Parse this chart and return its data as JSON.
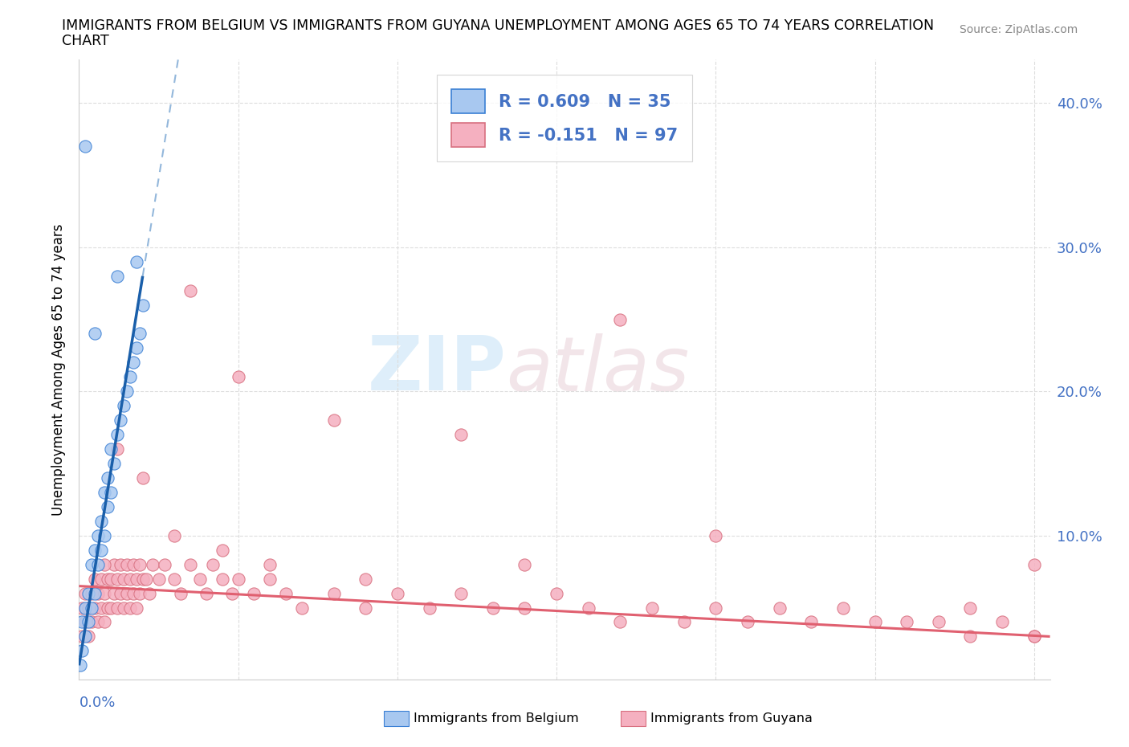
{
  "title_line1": "IMMIGRANTS FROM BELGIUM VS IMMIGRANTS FROM GUYANA UNEMPLOYMENT AMONG AGES 65 TO 74 YEARS CORRELATION",
  "title_line2": "CHART",
  "source": "Source: ZipAtlas.com",
  "ylabel_label": "Unemployment Among Ages 65 to 74 years",
  "legend_r1": "R = 0.609   N = 35",
  "legend_r2": "R = -0.151   N = 97",
  "color_belgium_fill": "#a8c8f0",
  "color_belgium_edge": "#3a7fd4",
  "color_belgium_line": "#1a5faa",
  "color_guyana_fill": "#f5b0c0",
  "color_guyana_edge": "#d87080",
  "color_guyana_line": "#e06070",
  "watermark_zip": "ZIP",
  "watermark_atlas": "atlas",
  "xlim": [
    0.0,
    0.305
  ],
  "ylim": [
    0.0,
    0.43
  ],
  "ytick_right_labels": [
    "10.0%",
    "20.0%",
    "30.0%",
    "40.0%"
  ],
  "ytick_right_values": [
    0.1,
    0.2,
    0.3,
    0.4
  ],
  "background_color": "#ffffff",
  "grid_color": "#dddddd",
  "belgium_x": [
    0.0005,
    0.001,
    0.001,
    0.002,
    0.002,
    0.003,
    0.003,
    0.004,
    0.004,
    0.005,
    0.005,
    0.006,
    0.006,
    0.007,
    0.007,
    0.008,
    0.008,
    0.009,
    0.009,
    0.01,
    0.01,
    0.011,
    0.012,
    0.013,
    0.014,
    0.015,
    0.016,
    0.017,
    0.018,
    0.019,
    0.02,
    0.002,
    0.005,
    0.012,
    0.018
  ],
  "belgium_y": [
    0.01,
    0.02,
    0.04,
    0.03,
    0.05,
    0.04,
    0.06,
    0.05,
    0.08,
    0.06,
    0.09,
    0.08,
    0.1,
    0.09,
    0.11,
    0.1,
    0.13,
    0.12,
    0.14,
    0.13,
    0.16,
    0.15,
    0.17,
    0.18,
    0.19,
    0.2,
    0.21,
    0.22,
    0.23,
    0.24,
    0.26,
    0.37,
    0.24,
    0.28,
    0.29
  ],
  "guyana_x": [
    0.001,
    0.001,
    0.002,
    0.002,
    0.003,
    0.003,
    0.004,
    0.004,
    0.005,
    0.005,
    0.006,
    0.006,
    0.007,
    0.007,
    0.008,
    0.008,
    0.009,
    0.009,
    0.01,
    0.01,
    0.011,
    0.011,
    0.012,
    0.012,
    0.013,
    0.013,
    0.014,
    0.014,
    0.015,
    0.015,
    0.016,
    0.016,
    0.017,
    0.017,
    0.018,
    0.018,
    0.019,
    0.019,
    0.02,
    0.021,
    0.022,
    0.023,
    0.025,
    0.027,
    0.03,
    0.032,
    0.035,
    0.038,
    0.04,
    0.042,
    0.045,
    0.048,
    0.05,
    0.055,
    0.06,
    0.065,
    0.07,
    0.08,
    0.09,
    0.1,
    0.11,
    0.12,
    0.13,
    0.14,
    0.15,
    0.16,
    0.17,
    0.18,
    0.19,
    0.2,
    0.21,
    0.22,
    0.23,
    0.24,
    0.25,
    0.26,
    0.27,
    0.28,
    0.29,
    0.3,
    0.035,
    0.05,
    0.08,
    0.12,
    0.17,
    0.008,
    0.012,
    0.02,
    0.03,
    0.045,
    0.06,
    0.09,
    0.14,
    0.2,
    0.28,
    0.3,
    0.3
  ],
  "guyana_y": [
    0.05,
    0.03,
    0.06,
    0.04,
    0.05,
    0.03,
    0.06,
    0.04,
    0.07,
    0.05,
    0.06,
    0.04,
    0.07,
    0.05,
    0.06,
    0.04,
    0.07,
    0.05,
    0.07,
    0.05,
    0.08,
    0.06,
    0.07,
    0.05,
    0.08,
    0.06,
    0.07,
    0.05,
    0.08,
    0.06,
    0.07,
    0.05,
    0.08,
    0.06,
    0.07,
    0.05,
    0.08,
    0.06,
    0.07,
    0.07,
    0.06,
    0.08,
    0.07,
    0.08,
    0.07,
    0.06,
    0.08,
    0.07,
    0.06,
    0.08,
    0.07,
    0.06,
    0.07,
    0.06,
    0.07,
    0.06,
    0.05,
    0.06,
    0.05,
    0.06,
    0.05,
    0.06,
    0.05,
    0.05,
    0.06,
    0.05,
    0.04,
    0.05,
    0.04,
    0.05,
    0.04,
    0.05,
    0.04,
    0.05,
    0.04,
    0.04,
    0.04,
    0.03,
    0.04,
    0.03,
    0.27,
    0.21,
    0.18,
    0.17,
    0.25,
    0.08,
    0.16,
    0.14,
    0.1,
    0.09,
    0.08,
    0.07,
    0.08,
    0.1,
    0.05,
    0.03,
    0.08
  ]
}
